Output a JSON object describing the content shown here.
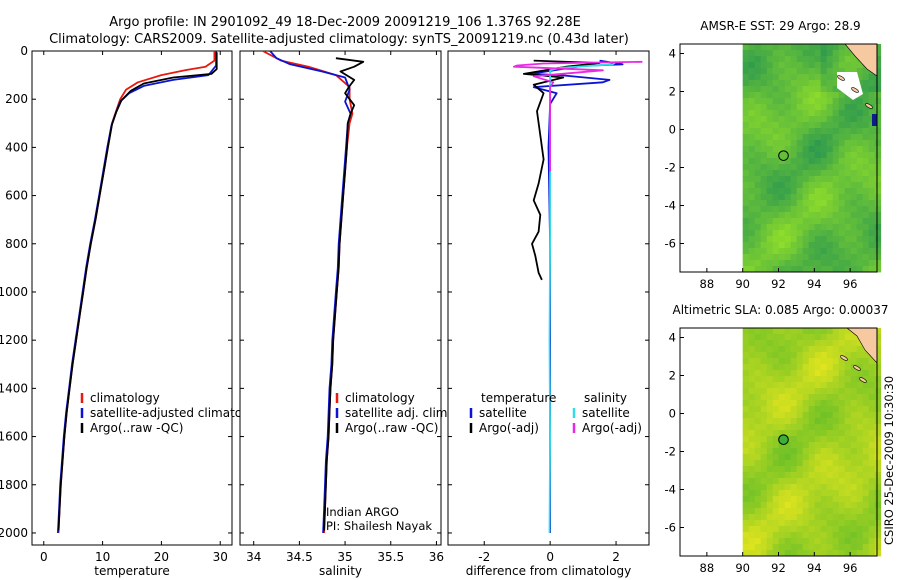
{
  "header": {
    "title_line1": "Argo profile: IN 2901092_49 18-Dec-2009 20091219_106 1.376S 92.28E",
    "title_line2": "Climatology: CARS2009. Satellite-adjusted climatology: synTS_20091219.nc (0.43d later)"
  },
  "stamp": "CSIRO 25-Dec-2009 10:30:30",
  "colors": {
    "red": "#e8190e",
    "blue": "#0a14d2",
    "black": "#000000",
    "cyan": "#33dde6",
    "magenta": "#e82ae4",
    "land": "#f7c9a0",
    "nodata": "#ffffff"
  },
  "chart_data": [
    {
      "id": "temperature",
      "type": "line",
      "xlabel": "temperature",
      "xlim": [
        -2,
        32
      ],
      "xticks": [
        0,
        10,
        20,
        30
      ],
      "ylim": [
        0,
        2050
      ],
      "yticks": [
        0,
        200,
        400,
        600,
        800,
        1000,
        1200,
        1400,
        1600,
        1800,
        2000
      ],
      "y_reversed": true,
      "legend": [
        {
          "label": "climatology",
          "color": "red"
        },
        {
          "label": "satellite-adjusted climatology",
          "color": "blue"
        },
        {
          "label": "Argo(..raw -QC)",
          "color": "black"
        }
      ],
      "series": [
        {
          "name": "climatology",
          "color": "red",
          "points": [
            [
              29.0,
              0
            ],
            [
              29.0,
              40
            ],
            [
              27.5,
              65
            ],
            [
              24,
              80
            ],
            [
              20,
              100
            ],
            [
              16,
              130
            ],
            [
              14,
              160
            ],
            [
              13,
              200
            ],
            [
              12.3,
              250
            ],
            [
              11.6,
              300
            ],
            [
              10.9,
              400
            ],
            [
              10.2,
              500
            ],
            [
              9.5,
              600
            ],
            [
              8.8,
              700
            ],
            [
              8.0,
              800
            ],
            [
              7.3,
              900
            ],
            [
              6.7,
              1000
            ],
            [
              6.1,
              1100
            ],
            [
              5.5,
              1200
            ],
            [
              4.9,
              1300
            ],
            [
              4.4,
              1400
            ],
            [
              3.9,
              1500
            ],
            [
              3.5,
              1600
            ],
            [
              3.2,
              1700
            ],
            [
              2.9,
              1800
            ],
            [
              2.7,
              1900
            ],
            [
              2.5,
              2000
            ]
          ]
        },
        {
          "name": "satellite-adjusted climatology",
          "color": "blue",
          "points": [
            [
              29.3,
              0
            ],
            [
              29.3,
              60
            ],
            [
              28,
              100
            ],
            [
              22,
              120
            ],
            [
              17,
              145
            ],
            [
              14.5,
              175
            ],
            [
              13,
              210
            ],
            [
              12.2,
              260
            ],
            [
              11.5,
              310
            ],
            [
              10.8,
              400
            ],
            [
              10.1,
              500
            ],
            [
              9.4,
              600
            ],
            [
              8.7,
              700
            ],
            [
              7.9,
              800
            ],
            [
              7.2,
              900
            ],
            [
              6.6,
              1000
            ],
            [
              6.0,
              1100
            ],
            [
              5.4,
              1200
            ],
            [
              4.8,
              1300
            ],
            [
              4.3,
              1400
            ],
            [
              3.8,
              1500
            ],
            [
              3.4,
              1600
            ],
            [
              3.1,
              1700
            ],
            [
              2.8,
              1800
            ],
            [
              2.6,
              1900
            ],
            [
              2.4,
              2000
            ]
          ]
        },
        {
          "name": "Argo(..raw -QC)",
          "color": "black",
          "points": [
            [
              29.4,
              5
            ],
            [
              29.4,
              75
            ],
            [
              28.5,
              95
            ],
            [
              22,
              110
            ],
            [
              17,
              135
            ],
            [
              14.8,
              165
            ],
            [
              13.2,
              205
            ],
            [
              12.3,
              255
            ],
            [
              11.6,
              305
            ],
            [
              10.9,
              400
            ],
            [
              10.2,
              500
            ],
            [
              9.5,
              600
            ],
            [
              8.8,
              700
            ],
            [
              8.0,
              800
            ],
            [
              7.3,
              900
            ],
            [
              6.7,
              1000
            ],
            [
              6.1,
              1100
            ],
            [
              5.5,
              1200
            ],
            [
              4.9,
              1300
            ],
            [
              4.4,
              1400
            ],
            [
              3.9,
              1500
            ],
            [
              3.5,
              1600
            ],
            [
              3.2,
              1700
            ],
            [
              2.9,
              1800
            ],
            [
              2.7,
              1900
            ],
            [
              2.5,
              1990
            ]
          ]
        }
      ]
    },
    {
      "id": "salinity",
      "type": "line",
      "xlabel": "salinity",
      "xlim": [
        33.85,
        36.05
      ],
      "xticks": [
        34,
        34.5,
        35,
        35.5,
        36
      ],
      "ylim": [
        0,
        2050
      ],
      "yticks": [
        0,
        200,
        400,
        600,
        800,
        1000,
        1200,
        1400,
        1600,
        1800,
        2000
      ],
      "y_reversed": true,
      "legend": [
        {
          "label": "climatology",
          "color": "red"
        },
        {
          "label": "satellite adj. clim.",
          "color": "blue"
        },
        {
          "label": "Argo(..raw -QC)",
          "color": "black"
        }
      ],
      "annotation_lines": [
        "Indian ARGO",
        "PI: Shailesh Nayak"
      ],
      "series": [
        {
          "name": "climatology",
          "color": "red",
          "points": [
            [
              34.1,
              0
            ],
            [
              34.3,
              40
            ],
            [
              34.6,
              65
            ],
            [
              34.9,
              100
            ],
            [
              35.05,
              150
            ],
            [
              35.05,
              200
            ],
            [
              35.08,
              260
            ],
            [
              35.05,
              300
            ],
            [
              35.02,
              400
            ],
            [
              35.0,
              500
            ],
            [
              34.98,
              600
            ],
            [
              34.96,
              700
            ],
            [
              34.94,
              800
            ],
            [
              34.93,
              900
            ],
            [
              34.91,
              1000
            ],
            [
              34.89,
              1100
            ],
            [
              34.87,
              1200
            ],
            [
              34.86,
              1300
            ],
            [
              34.84,
              1400
            ],
            [
              34.83,
              1500
            ],
            [
              34.82,
              1600
            ],
            [
              34.8,
              1700
            ],
            [
              34.79,
              1800
            ],
            [
              34.78,
              1900
            ],
            [
              34.77,
              2000
            ]
          ]
        },
        {
          "name": "satellite adj. clim.",
          "color": "blue",
          "points": [
            [
              34.18,
              0
            ],
            [
              34.25,
              30
            ],
            [
              34.4,
              55
            ],
            [
              34.75,
              85
            ],
            [
              35.0,
              110
            ],
            [
              35.05,
              160
            ],
            [
              35.0,
              210
            ],
            [
              35.06,
              260
            ],
            [
              35.03,
              300
            ],
            [
              35.01,
              400
            ],
            [
              34.99,
              500
            ],
            [
              34.97,
              600
            ],
            [
              34.95,
              700
            ],
            [
              34.93,
              800
            ],
            [
              34.92,
              900
            ],
            [
              34.9,
              1000
            ],
            [
              34.88,
              1100
            ],
            [
              34.86,
              1200
            ],
            [
              34.85,
              1300
            ],
            [
              34.83,
              1400
            ],
            [
              34.82,
              1500
            ],
            [
              34.81,
              1600
            ],
            [
              34.79,
              1700
            ],
            [
              34.78,
              1800
            ],
            [
              34.77,
              1900
            ],
            [
              34.76,
              2000
            ]
          ]
        },
        {
          "name": "Argo(..raw -QC)",
          "color": "black",
          "points": [
            [
              34.9,
              30
            ],
            [
              35.2,
              45
            ],
            [
              35.1,
              65
            ],
            [
              34.95,
              85
            ],
            [
              35.1,
              120
            ],
            [
              35.05,
              145
            ],
            [
              35.0,
              175
            ],
            [
              35.1,
              225
            ],
            [
              35.06,
              260
            ],
            [
              35.03,
              300
            ],
            [
              35.02,
              400
            ],
            [
              35.0,
              500
            ],
            [
              34.98,
              600
            ],
            [
              34.96,
              700
            ],
            [
              34.94,
              800
            ],
            [
              34.93,
              900
            ],
            [
              34.91,
              1000
            ],
            [
              34.89,
              1100
            ],
            [
              34.87,
              1200
            ],
            [
              34.86,
              1300
            ],
            [
              34.84,
              1400
            ],
            [
              34.83,
              1500
            ],
            [
              34.82,
              1600
            ],
            [
              34.8,
              1700
            ],
            [
              34.79,
              1800
            ],
            [
              34.78,
              1900
            ],
            [
              34.77,
              1990
            ]
          ]
        }
      ]
    },
    {
      "id": "difference",
      "type": "line",
      "xlabel": "difference from climatology",
      "xlim": [
        -3.1,
        3.0
      ],
      "xticks": [
        -2,
        0,
        2
      ],
      "ylim": [
        0,
        2050
      ],
      "yticks": [
        0,
        200,
        400,
        600,
        800,
        1000,
        1200,
        1400,
        1600,
        1800,
        2000
      ],
      "y_reversed": true,
      "legend_headers": [
        "temperature",
        "salinity"
      ],
      "legend": [
        {
          "label": "satellite",
          "color": "blue",
          "column": 0
        },
        {
          "label": "Argo(-adj)",
          "color": "black",
          "column": 0
        },
        {
          "label": "satellite",
          "color": "cyan",
          "column": 1
        },
        {
          "label": "Argo(-adj)",
          "color": "magenta",
          "column": 1
        }
      ],
      "series": [
        {
          "name": "temperature satellite",
          "color": "blue",
          "points": [
            [
              1.5,
              40
            ],
            [
              2.2,
              55
            ],
            [
              1.0,
              62
            ],
            [
              -0.6,
              95
            ],
            [
              0.3,
              100
            ],
            [
              1.8,
              120
            ],
            [
              1.6,
              130
            ],
            [
              -0.5,
              150
            ],
            [
              0.2,
              175
            ],
            [
              0.0,
              220
            ],
            [
              -0.05,
              400
            ],
            [
              0.0,
              800
            ],
            [
              0.0,
              1200
            ],
            [
              0.0,
              1600
            ],
            [
              0.0,
              2000
            ]
          ]
        },
        {
          "name": "temperature Argo(-adj)",
          "color": "black",
          "points": [
            [
              -0.5,
              40
            ],
            [
              1.5,
              50
            ],
            [
              0.5,
              65
            ],
            [
              -0.8,
              95
            ],
            [
              0.4,
              110
            ],
            [
              -0.5,
              140
            ],
            [
              -0.2,
              175
            ],
            [
              -0.4,
              250
            ],
            [
              -0.3,
              350
            ],
            [
              -0.2,
              450
            ],
            [
              -0.35,
              550
            ],
            [
              -0.5,
              620
            ],
            [
              -0.3,
              680
            ],
            [
              -0.35,
              750
            ],
            [
              -0.55,
              800
            ],
            [
              -0.45,
              850
            ],
            [
              -0.35,
              920
            ],
            [
              -0.25,
              950
            ]
          ]
        },
        {
          "name": "salinity satellite",
          "color": "cyan",
          "points": [
            [
              2.0,
              45
            ],
            [
              1.9,
              55
            ],
            [
              0.3,
              70
            ],
            [
              0.0,
              80
            ],
            [
              0.0,
              150
            ],
            [
              0.0,
              400
            ],
            [
              0.0,
              800
            ],
            [
              -0.02,
              1200
            ],
            [
              0.0,
              1600
            ],
            [
              -0.02,
              2000
            ]
          ]
        },
        {
          "name": "salinity Argo(-adj)",
          "color": "magenta",
          "points": [
            [
              2.8,
              45
            ],
            [
              -0.2,
              52
            ],
            [
              -1.0,
              60
            ],
            [
              -1.1,
              65
            ],
            [
              1.6,
              80
            ],
            [
              -0.5,
              105
            ],
            [
              0.1,
              130
            ],
            [
              0.0,
              150
            ],
            [
              0.0,
              300
            ],
            [
              0.0,
              500
            ]
          ]
        }
      ]
    },
    {
      "id": "sst-map",
      "type": "heatmap",
      "title": "AMSR-E SST: 29  Argo: 28.9",
      "xlim": [
        86.5,
        97.5
      ],
      "xticks": [
        88,
        90,
        92,
        94,
        96
      ],
      "ylim": [
        -7.5,
        4.5
      ],
      "yticks": [
        -6,
        -4,
        -2,
        0,
        2,
        4
      ],
      "data_lon_start": 90,
      "argo_marker": {
        "lon": 92.28,
        "lat": -1.376,
        "fill": "none"
      }
    },
    {
      "id": "sla-map",
      "type": "heatmap",
      "title": "Altimetric SLA: 0.085  Argo: 0.00037",
      "xlim": [
        86.5,
        97.5
      ],
      "xticks": [
        88,
        90,
        92,
        94,
        96
      ],
      "ylim": [
        -7.5,
        4.5
      ],
      "yticks": [
        -6,
        -4,
        -2,
        0,
        2,
        4
      ],
      "data_lon_start": 90,
      "argo_marker": {
        "lon": 92.28,
        "lat": -1.376,
        "fill": "#3ab03a"
      }
    }
  ]
}
